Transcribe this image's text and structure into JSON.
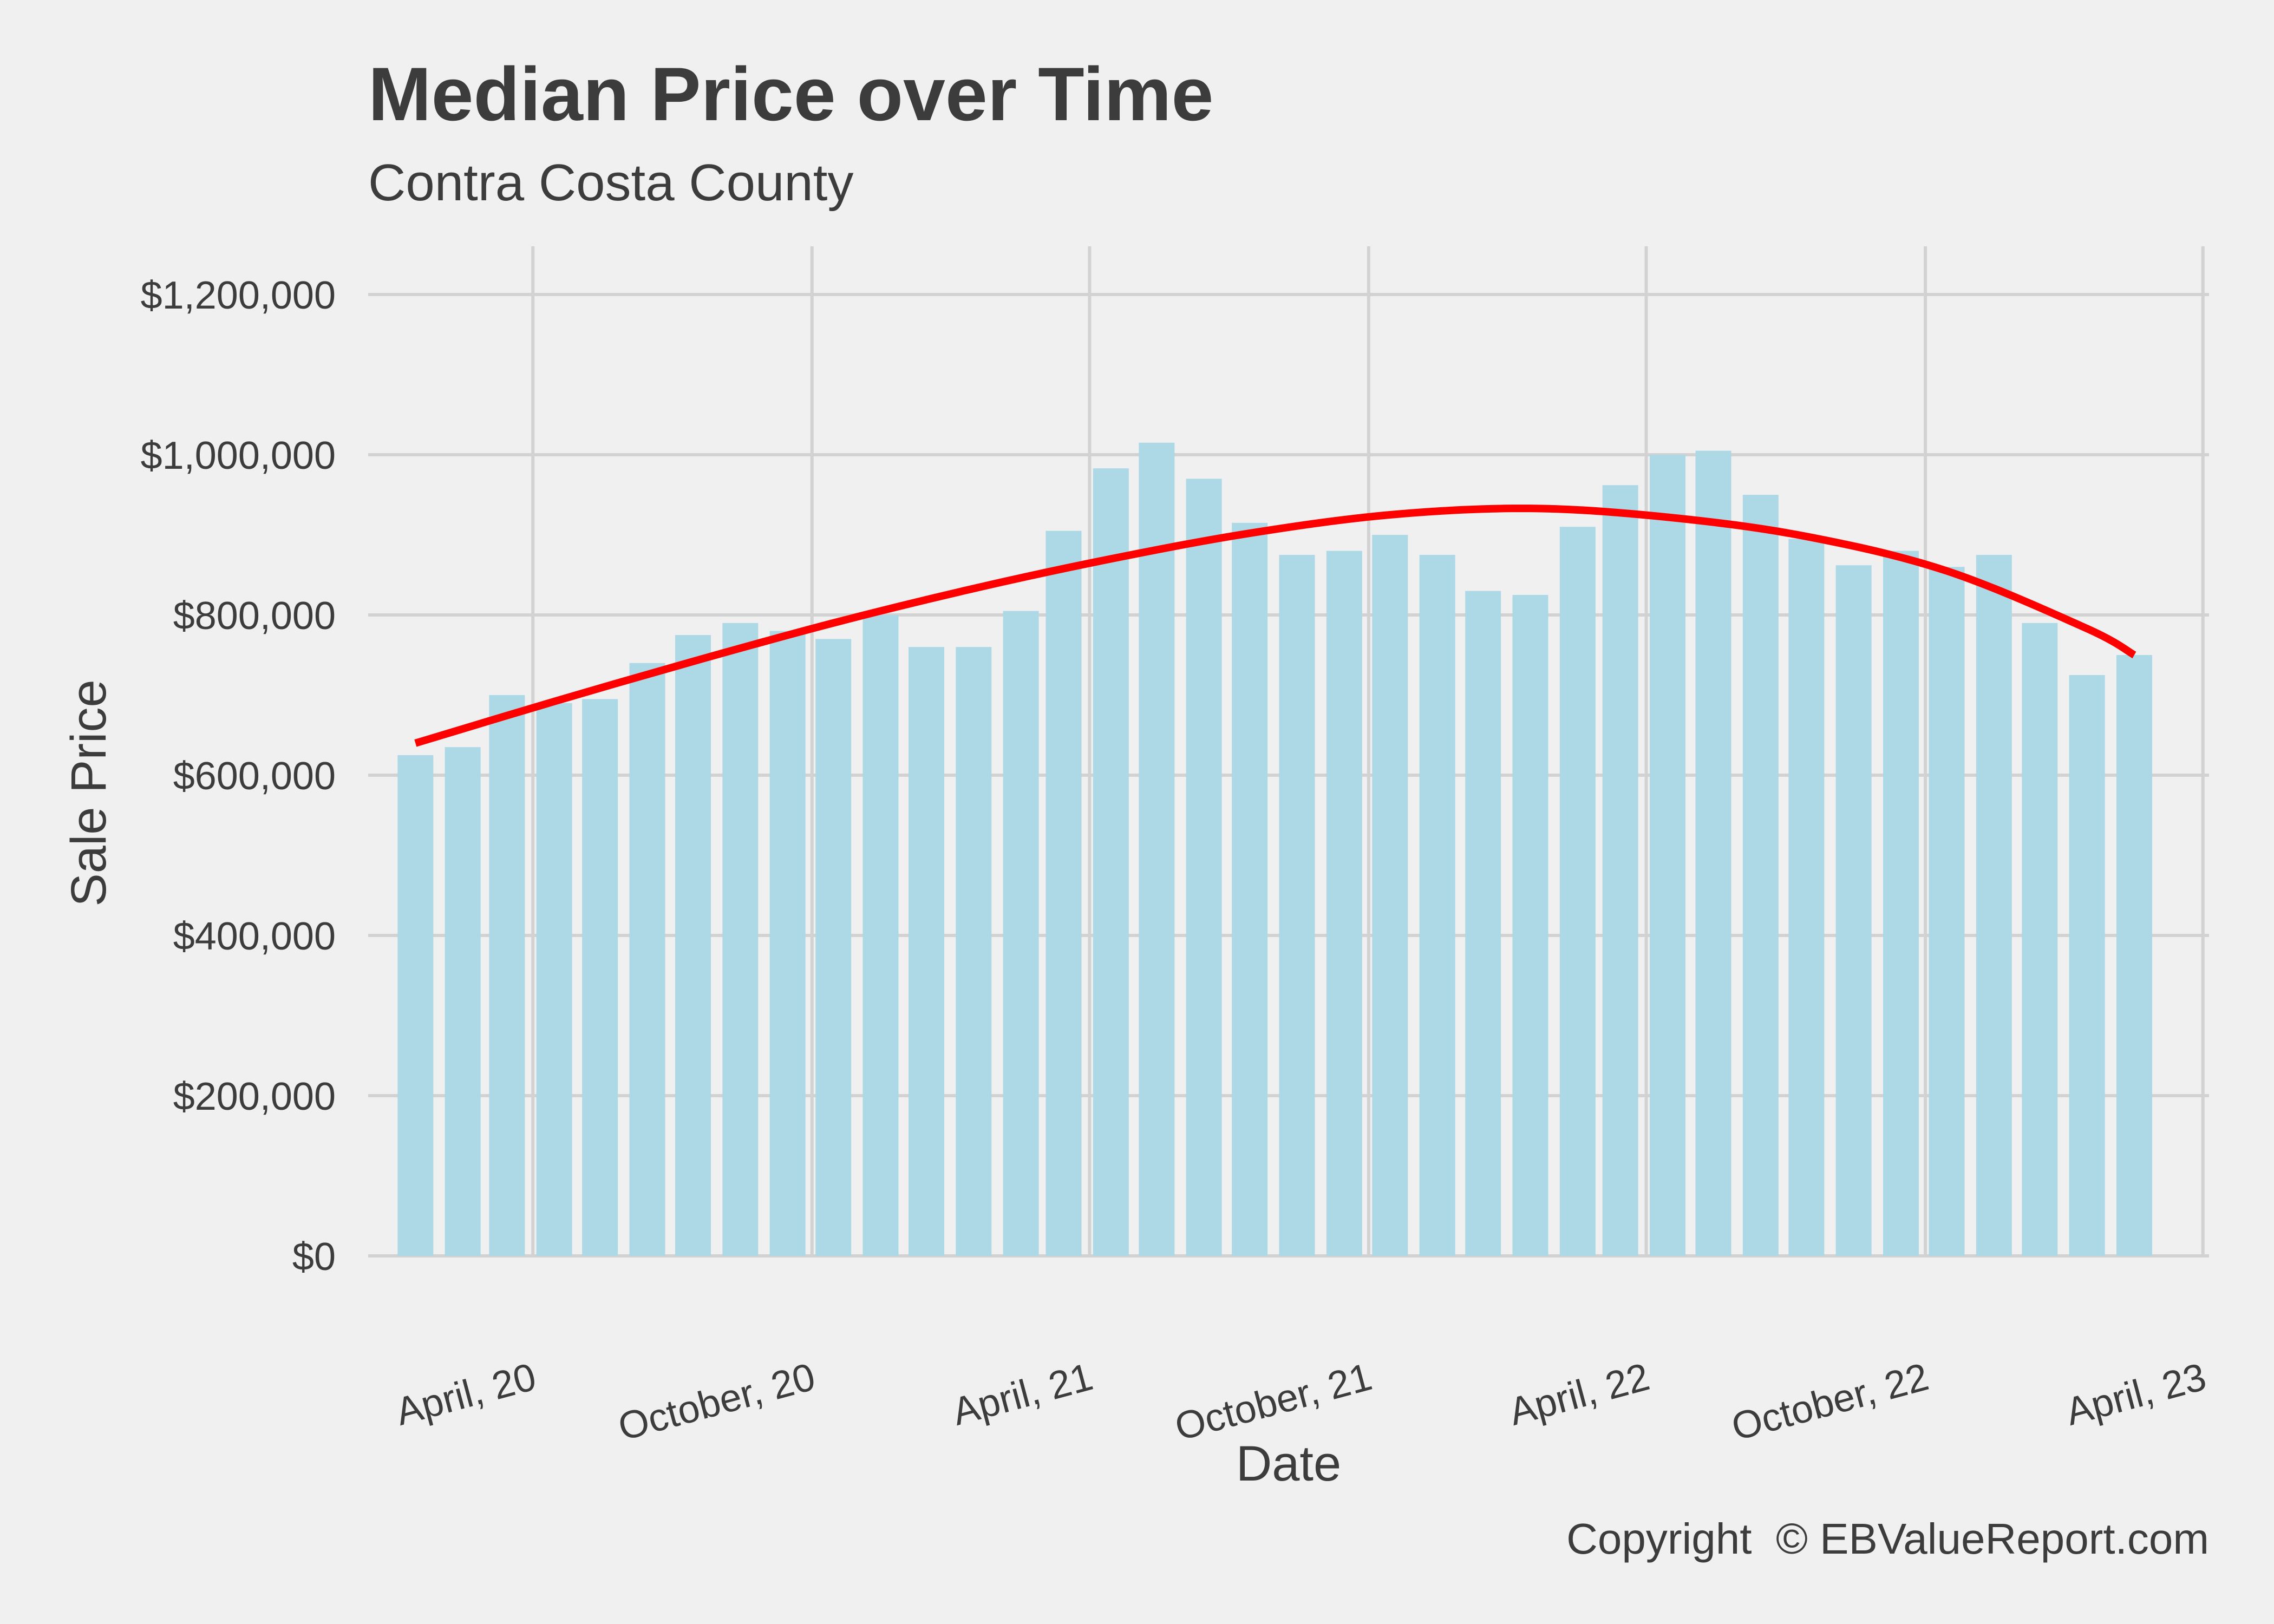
{
  "chart_data": {
    "type": "bar",
    "title": "Median Price over Time",
    "subtitle": "Contra Costa County",
    "xlabel": "Date",
    "ylabel": "Sale Price",
    "caption": "Copyright  © EBValueReport.com",
    "ylim": [
      0,
      1200000
    ],
    "y_ticks": [
      0,
      200000,
      400000,
      600000,
      800000,
      1000000,
      1200000
    ],
    "y_tick_labels": [
      "$0",
      "$200,000",
      "$400,000",
      "$600,000",
      "$800,000",
      "$1,000,000",
      "$1,200,000"
    ],
    "x_ticks": [
      "2020-04-01",
      "2020-10-01",
      "2021-04-01",
      "2021-10-01",
      "2022-04-01",
      "2022-10-01",
      "2023-04-01"
    ],
    "x_tick_labels": [
      "April, 20",
      "October, 20",
      "April, 21",
      "October, 21",
      "April, 22",
      "October, 22",
      "April, 23"
    ],
    "x_range": [
      "2019-12-15",
      "2023-04-05"
    ],
    "grid": true,
    "colors": {
      "background": "#f0f0f0",
      "bar": "#add8e6",
      "trend": "#ff0000",
      "grid": "#d2d2d2",
      "text": "#3c3c3c"
    },
    "series": [
      {
        "type": "bar",
        "x": [
          "2020-01-15",
          "2020-02-15",
          "2020-03-15",
          "2020-04-15",
          "2020-05-15",
          "2020-06-15",
          "2020-07-15",
          "2020-08-15",
          "2020-09-15",
          "2020-10-15",
          "2020-11-15",
          "2020-12-15",
          "2021-01-15",
          "2021-02-15",
          "2021-03-15",
          "2021-04-15",
          "2021-05-15",
          "2021-06-15",
          "2021-07-15",
          "2021-08-15",
          "2021-09-15",
          "2021-10-15",
          "2021-11-15",
          "2021-12-15",
          "2022-01-15",
          "2022-02-15",
          "2022-03-15",
          "2022-04-15",
          "2022-05-15",
          "2022-06-15",
          "2022-07-15",
          "2022-08-15",
          "2022-09-15",
          "2022-10-15",
          "2022-11-15",
          "2022-12-15",
          "2023-01-15",
          "2023-02-15"
        ],
        "values": [
          625000,
          635000,
          700000,
          690000,
          695000,
          740000,
          775000,
          790000,
          780000,
          770000,
          800000,
          760000,
          760000,
          805000,
          905000,
          983000,
          1015000,
          970000,
          915000,
          875000,
          880000,
          900000,
          875000,
          830000,
          825000,
          910000,
          962000,
          1000000,
          1005000,
          950000,
          895000,
          862000,
          880000,
          860000,
          875000,
          790000,
          725000,
          750000
        ]
      },
      {
        "type": "line",
        "x": [
          "2020-01-15",
          "2020-04-15",
          "2020-07-15",
          "2020-10-15",
          "2021-01-15",
          "2021-04-15",
          "2021-07-15",
          "2021-10-15",
          "2022-01-15",
          "2022-04-15",
          "2022-07-15",
          "2022-10-15",
          "2023-01-15",
          "2023-02-15"
        ],
        "values": [
          640000,
          692000,
          742000,
          790000,
          833000,
          870000,
          902000,
          925000,
          933000,
          922000,
          898000,
          855000,
          783000,
          750000
        ]
      }
    ]
  }
}
